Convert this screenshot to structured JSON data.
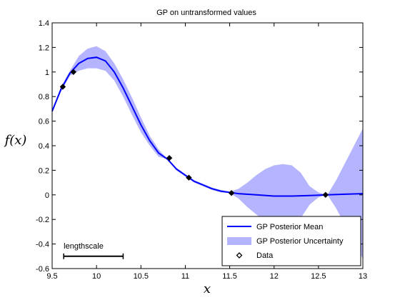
{
  "chart_data": {
    "type": "line",
    "title": "GP on untransformed values",
    "xlabel": "x",
    "ylabel": "f(x)",
    "xlim": [
      9.5,
      13
    ],
    "ylim": [
      -0.6,
      1.4
    ],
    "xticks": [
      9.5,
      10,
      10.5,
      11,
      11.5,
      12,
      12.5,
      13
    ],
    "xtick_labels": [
      "9.5",
      "10",
      "10.5",
      "11",
      "11.5",
      "12",
      "12.5",
      "13"
    ],
    "yticks": [
      -0.6,
      -0.4,
      -0.2,
      0,
      0.2,
      0.4,
      0.6,
      0.8,
      1,
      1.2,
      1.4
    ],
    "ytick_labels": [
      "-0.6",
      "-0.4",
      "-0.2",
      "0",
      "0.2",
      "0.4",
      "0.6",
      "0.8",
      "1",
      "1.2",
      "1.4"
    ],
    "grid": false,
    "legend_placement": "bottom-right",
    "series": [
      {
        "name": "GP Posterior Mean",
        "kind": "line",
        "color": "#0000ff",
        "x": [
          9.5,
          9.6,
          9.7,
          9.8,
          9.9,
          10.0,
          10.1,
          10.2,
          10.3,
          10.4,
          10.5,
          10.6,
          10.7,
          10.8,
          10.9,
          11.0,
          11.1,
          11.2,
          11.3,
          11.4,
          11.5,
          11.6,
          11.8,
          12.0,
          12.2,
          12.4,
          12.6,
          12.8,
          13.0
        ],
        "y": [
          0.68,
          0.86,
          0.99,
          1.07,
          1.11,
          1.12,
          1.09,
          1.0,
          0.87,
          0.72,
          0.57,
          0.44,
          0.34,
          0.29,
          0.21,
          0.16,
          0.11,
          0.08,
          0.05,
          0.03,
          0.02,
          0.01,
          0.0,
          -0.01,
          -0.01,
          -0.005,
          0.0,
          0.005,
          0.01
        ]
      },
      {
        "name": "GP Posterior Uncertainty",
        "kind": "band",
        "color": "#b4b4ff",
        "x": [
          9.5,
          9.6,
          9.7,
          9.8,
          9.9,
          10.0,
          10.1,
          10.2,
          10.3,
          10.4,
          10.5,
          10.6,
          10.7,
          10.8,
          10.9,
          11.0,
          11.1,
          11.2,
          11.3,
          11.4,
          11.5,
          11.6,
          11.7,
          11.8,
          11.9,
          12.0,
          12.1,
          12.2,
          12.3,
          12.4,
          12.5,
          12.6,
          12.7,
          12.8,
          12.9,
          13.0
        ],
        "upper": [
          0.69,
          0.88,
          1.01,
          1.13,
          1.19,
          1.21,
          1.17,
          1.07,
          0.94,
          0.79,
          0.63,
          0.48,
          0.37,
          0.29,
          0.22,
          0.17,
          0.12,
          0.09,
          0.06,
          0.04,
          0.025,
          0.05,
          0.1,
          0.16,
          0.21,
          0.24,
          0.25,
          0.24,
          0.18,
          0.07,
          0.02,
          0.0,
          0.12,
          0.26,
          0.4,
          0.54
        ],
        "lower": [
          0.67,
          0.84,
          0.97,
          1.01,
          1.03,
          1.03,
          1.01,
          0.93,
          0.8,
          0.65,
          0.51,
          0.4,
          0.31,
          0.29,
          0.2,
          0.15,
          0.1,
          0.07,
          0.04,
          0.02,
          0.015,
          -0.03,
          -0.1,
          -0.16,
          -0.22,
          -0.26,
          -0.27,
          -0.26,
          -0.19,
          -0.08,
          -0.02,
          0.0,
          -0.11,
          -0.25,
          -0.39,
          -0.52
        ]
      },
      {
        "name": "Data",
        "kind": "markers",
        "marker": "diamond",
        "color": "#000000",
        "x": [
          9.62,
          9.74,
          10.82,
          11.04,
          11.52,
          12.58
        ],
        "y": [
          0.88,
          1.0,
          0.3,
          0.14,
          0.015,
          0.0
        ]
      }
    ],
    "annotation": {
      "text": "lengthscale",
      "x_start": 9.63,
      "x_end": 10.3,
      "y": -0.5
    }
  }
}
